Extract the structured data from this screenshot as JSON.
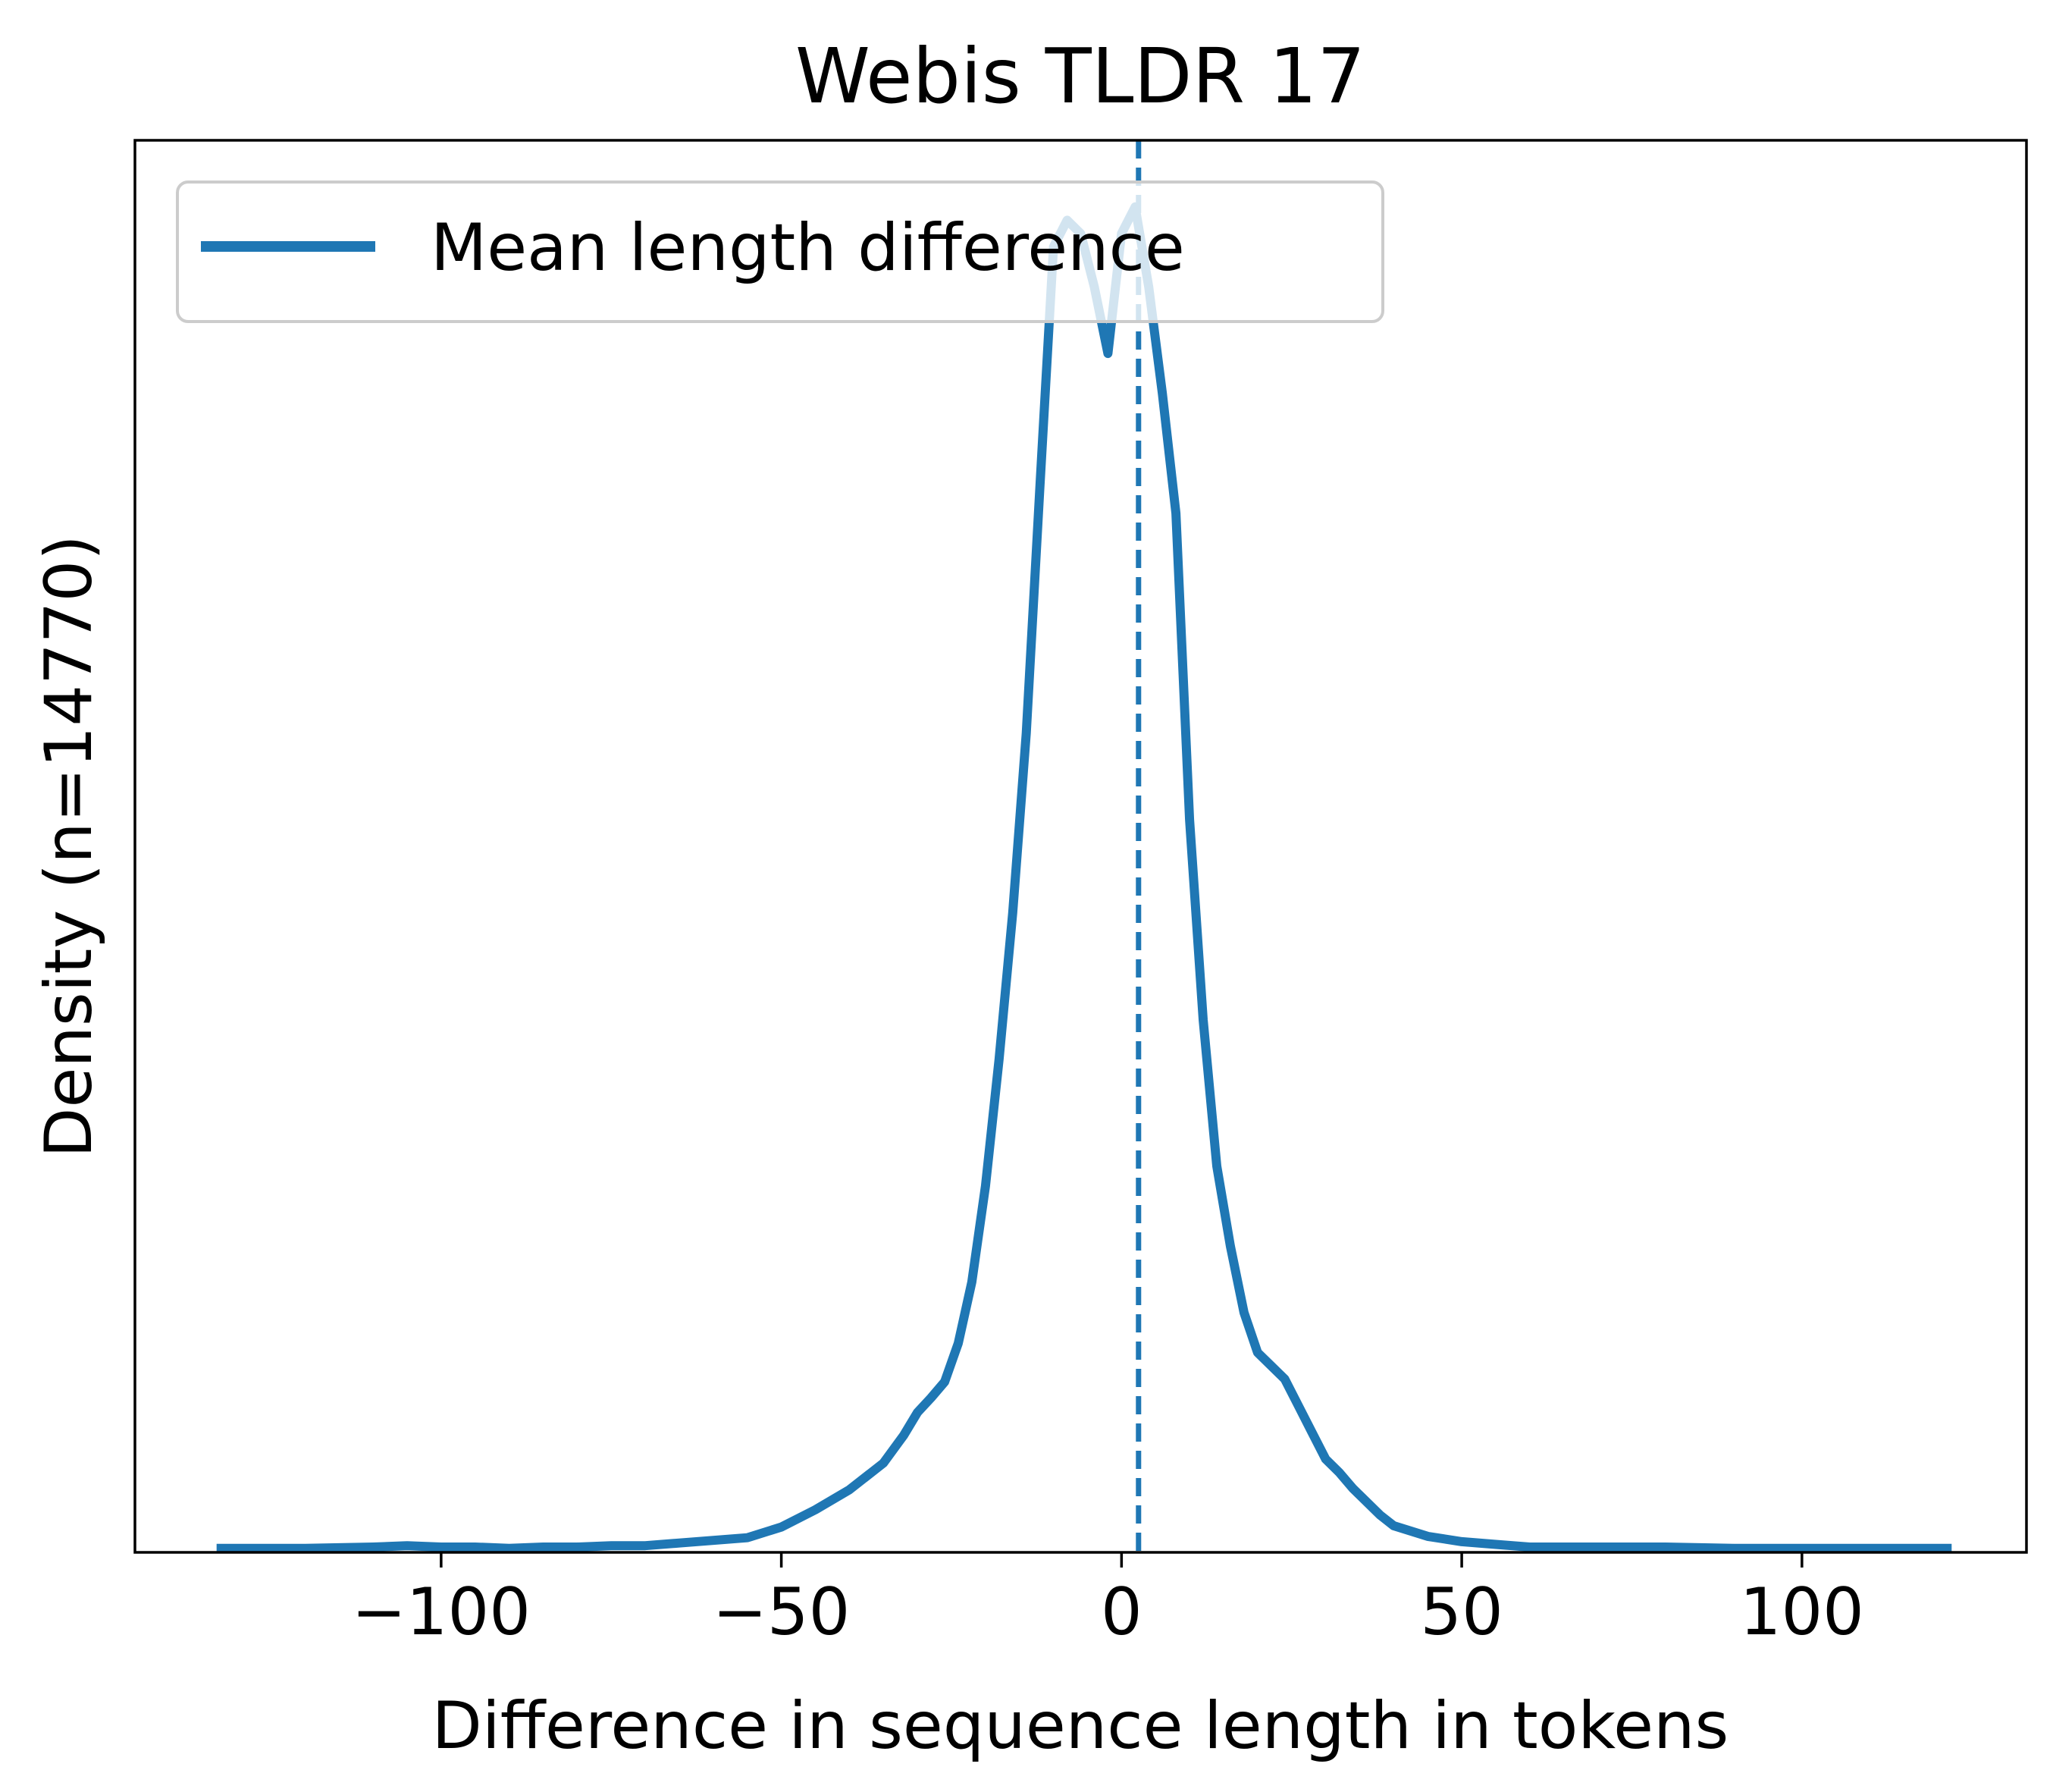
{
  "chart_data": {
    "type": "line",
    "title": "Webis TLDR 17",
    "xlabel": "Difference in sequence length in tokens",
    "ylabel": "Density (n=14770)",
    "xlim": [
      -145,
      133
    ],
    "ylim": [
      0,
      1.06
    ],
    "xticks": [
      {
        "value": -100,
        "label": "−100"
      },
      {
        "value": -50,
        "label": "−50"
      },
      {
        "value": 0,
        "label": "0"
      },
      {
        "value": 50,
        "label": "50"
      },
      {
        "value": 100,
        "label": "100"
      }
    ],
    "yticks_visible": false,
    "grid": false,
    "legend": {
      "position": "top-left"
    },
    "series": [
      {
        "name": "Mean length difference",
        "color": "#1f77b4",
        "x": [
          -133,
          -120,
          -110,
          -105,
          -100,
          -95,
          -90,
          -85,
          -80,
          -75,
          -70,
          -65,
          -60,
          -55,
          -50,
          -45,
          -40,
          -35,
          -32,
          -30,
          -28,
          -26,
          -24,
          -22,
          -20,
          -18,
          -16,
          -14,
          -12,
          -10,
          -8,
          -6,
          -4,
          -2,
          0,
          2,
          4,
          6,
          8,
          10,
          12,
          14,
          16,
          18,
          20,
          22,
          24,
          26,
          28,
          30,
          32,
          34,
          36,
          38,
          40,
          45,
          50,
          55,
          60,
          65,
          70,
          72,
          75,
          80,
          90,
          100,
          110,
          122
        ],
        "values": [
          0.003,
          0.003,
          0.004,
          0.005,
          0.004,
          0.004,
          0.003,
          0.004,
          0.004,
          0.005,
          0.005,
          0.007,
          0.009,
          0.011,
          0.019,
          0.032,
          0.047,
          0.067,
          0.088,
          0.105,
          0.116,
          0.128,
          0.157,
          0.203,
          0.275,
          0.37,
          0.48,
          0.615,
          0.8,
          0.98,
          1.0,
          0.99,
          0.95,
          0.9,
          0.99,
          1.01,
          0.95,
          0.87,
          0.78,
          0.55,
          0.4,
          0.29,
          0.23,
          0.18,
          0.15,
          0.14,
          0.13,
          0.11,
          0.09,
          0.07,
          0.06,
          0.048,
          0.038,
          0.028,
          0.02,
          0.012,
          0.008,
          0.006,
          0.004,
          0.004,
          0.004,
          0.004,
          0.004,
          0.004,
          0.003,
          0.003,
          0.003,
          0.003
        ]
      }
    ],
    "reference_lines": [
      {
        "axis": "x",
        "value": 2.5,
        "style": "dashed",
        "color": "#1f77b4"
      }
    ]
  }
}
